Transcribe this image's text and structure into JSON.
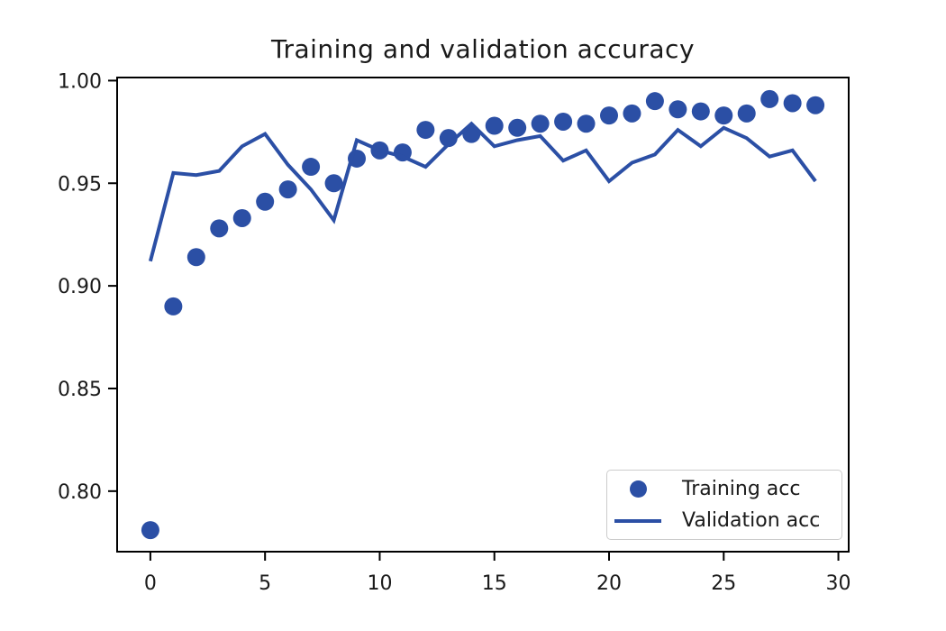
{
  "figure": {
    "background": "#ffffff"
  },
  "chart_data": {
    "type": "line",
    "title": "Training and validation accuracy",
    "xlabel": "",
    "ylabel": "",
    "grid": false,
    "x": [
      0,
      1,
      2,
      3,
      4,
      5,
      6,
      7,
      8,
      9,
      10,
      11,
      12,
      13,
      14,
      15,
      16,
      17,
      18,
      19,
      20,
      21,
      22,
      23,
      24,
      25,
      26,
      27,
      28,
      29
    ],
    "series": [
      {
        "name": "Training acc",
        "style": "scatter",
        "marker": "circle",
        "color": "#2b4fa5",
        "values": [
          0.781,
          0.89,
          0.914,
          0.928,
          0.933,
          0.941,
          0.947,
          0.958,
          0.95,
          0.962,
          0.966,
          0.965,
          0.976,
          0.972,
          0.974,
          0.978,
          0.977,
          0.979,
          0.98,
          0.979,
          0.983,
          0.984,
          0.99,
          0.986,
          0.985,
          0.983,
          0.984,
          0.991,
          0.989,
          0.988
        ]
      },
      {
        "name": "Validation acc",
        "style": "line",
        "color": "#2b4fa5",
        "values": [
          0.912,
          0.955,
          0.954,
          0.956,
          0.968,
          0.974,
          0.959,
          0.947,
          0.932,
          0.971,
          0.966,
          0.963,
          0.958,
          0.969,
          0.979,
          0.968,
          0.971,
          0.973,
          0.961,
          0.966,
          0.951,
          0.96,
          0.964,
          0.976,
          0.968,
          0.977,
          0.972,
          0.963,
          0.966,
          0.951
        ]
      }
    ],
    "xlim": [
      -1.45,
      30.45
    ],
    "ylim": [
      0.7705,
      1.0015
    ],
    "xticks": {
      "values": [
        0,
        5,
        10,
        15,
        20,
        25,
        30
      ],
      "labels": [
        "0",
        "5",
        "10",
        "15",
        "20",
        "25",
        "30"
      ]
    },
    "yticks": {
      "values": [
        0.8,
        0.85,
        0.9,
        0.95,
        1.0
      ],
      "labels": [
        "0.80",
        "0.85",
        "0.90",
        "0.95",
        "1.00"
      ]
    },
    "legend": {
      "position": "lower right",
      "entries": [
        "Training acc",
        "Validation acc"
      ]
    }
  }
}
